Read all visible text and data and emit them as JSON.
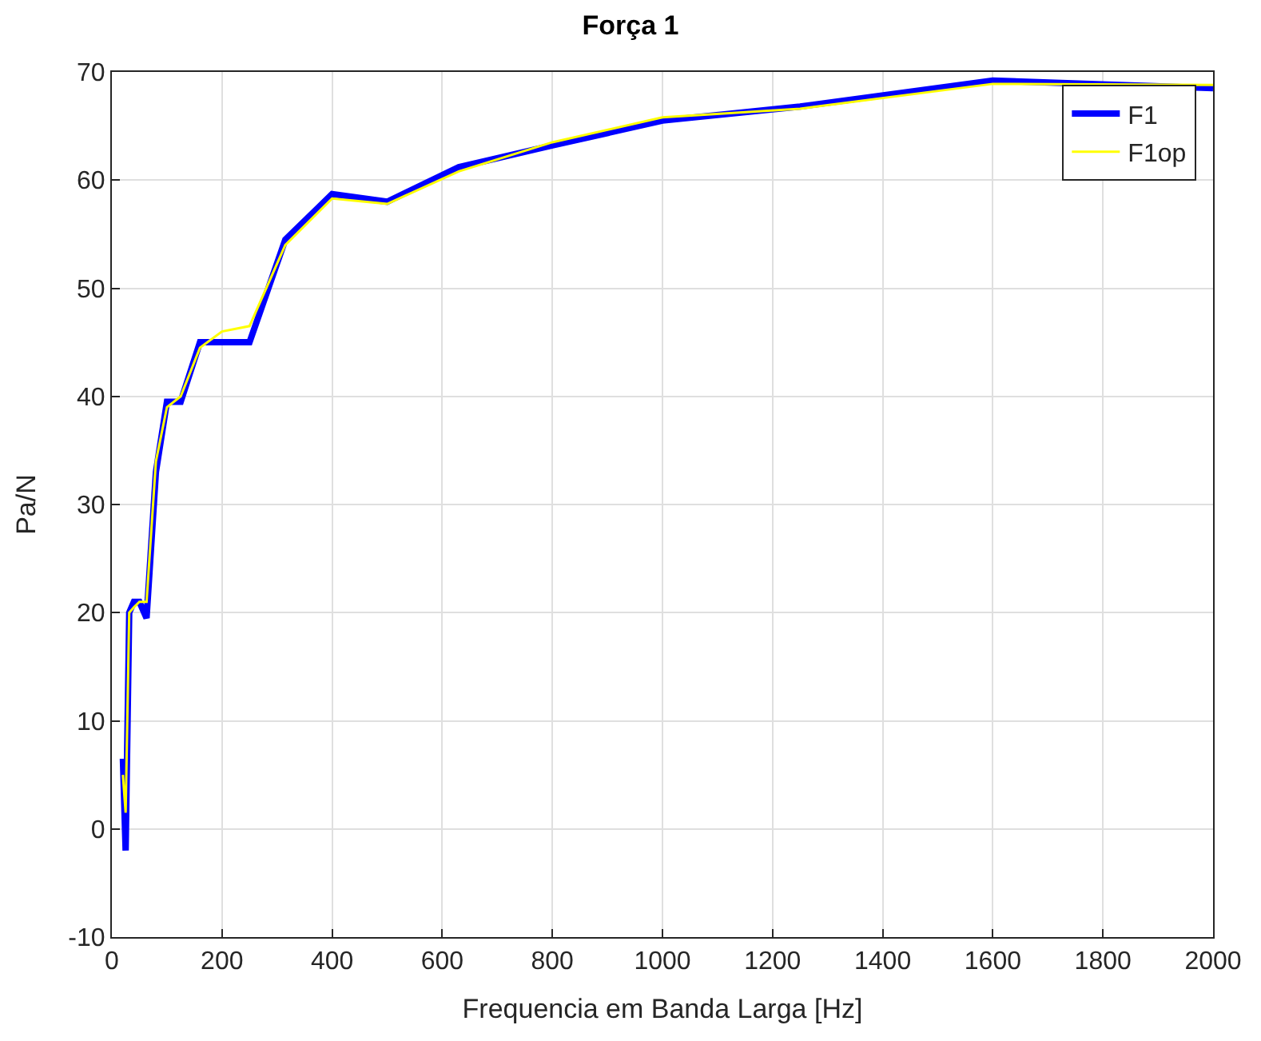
{
  "chart_data": {
    "type": "line",
    "title": "Força 1",
    "xlabel": "Frequencia em Banda Larga [Hz]",
    "ylabel": "Pa/N",
    "x": [
      20,
      25,
      31.5,
      40,
      50,
      63,
      80,
      100,
      125,
      160,
      200,
      250,
      315,
      400,
      500,
      630,
      800,
      1000,
      1250,
      1600,
      2000
    ],
    "series": [
      {
        "name": "F1",
        "color": "#0000ff",
        "values": [
          6.5,
          -2,
          20,
          21,
          21,
          19.5,
          33,
          39.5,
          39.5,
          45,
          45,
          45,
          54.5,
          58.7,
          58,
          61.2,
          63.2,
          65.5,
          66.8,
          69.2,
          68.5
        ]
      },
      {
        "name": "F1op",
        "color": "#ffff00",
        "values": [
          5,
          1.5,
          20,
          20.5,
          21,
          21,
          34,
          39,
          40,
          44.5,
          46,
          46.5,
          54,
          58.3,
          57.8,
          60.8,
          63.5,
          65.8,
          66.6,
          68.9,
          68.8
        ]
      }
    ],
    "xlim": [
      0,
      2000
    ],
    "xticks": [
      0,
      200,
      400,
      600,
      800,
      1000,
      1200,
      1400,
      1600,
      1800,
      2000
    ],
    "ylim": [
      -10,
      70
    ],
    "yticks": [
      -10,
      0,
      10,
      20,
      30,
      40,
      50,
      60,
      70
    ],
    "grid": true,
    "legend": "top right",
    "marker": "none",
    "line_style": "solid"
  }
}
